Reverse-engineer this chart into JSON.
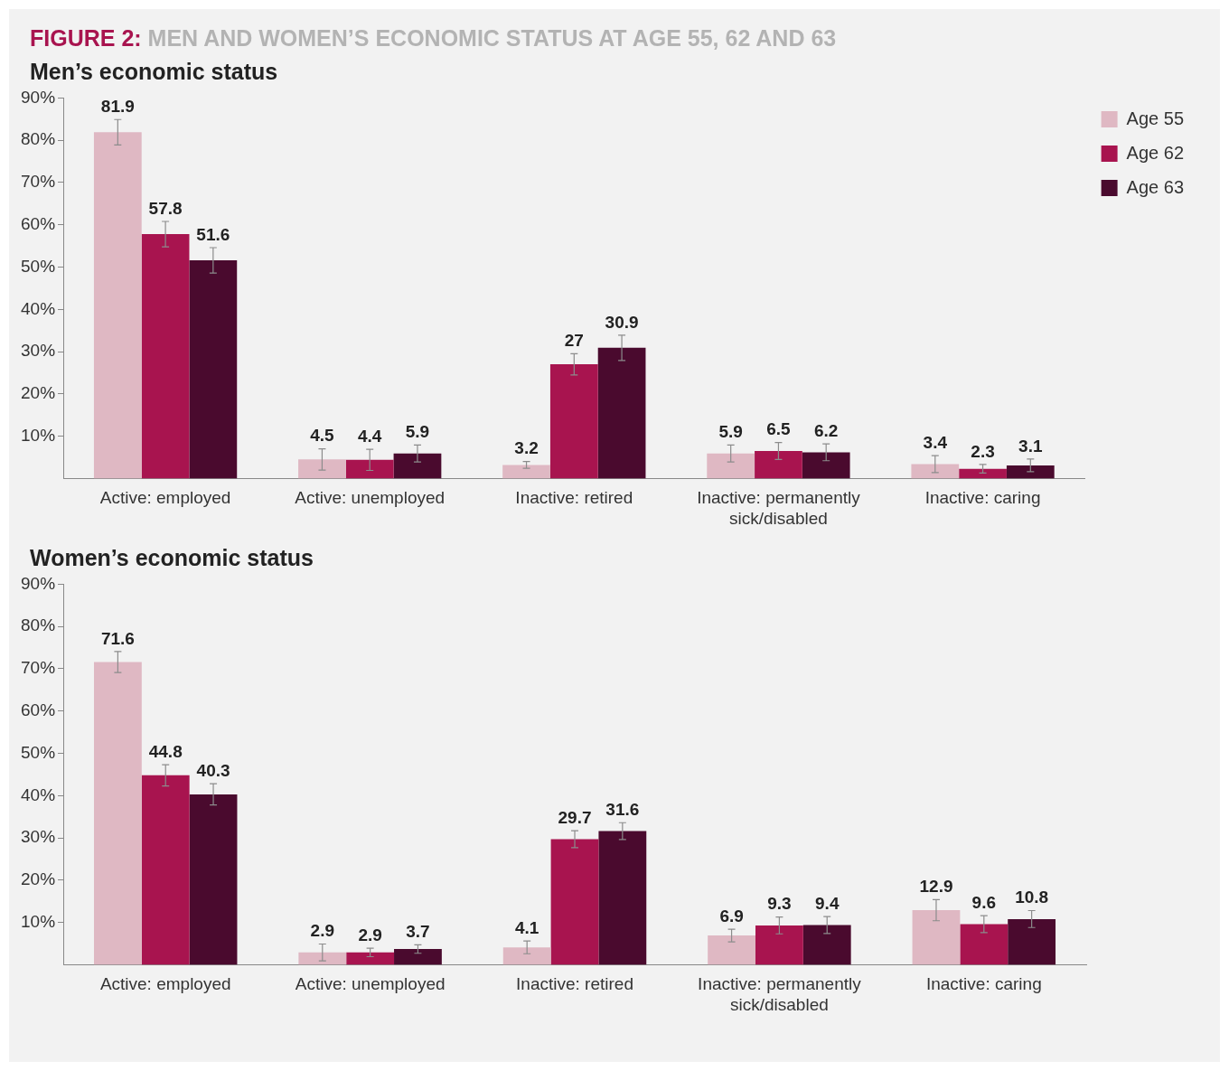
{
  "chart_data": [
    {
      "type": "bar",
      "title": "FIGURE 2: MEN AND WOMEN’S ECONOMIC STATUS AT AGE 55, 62 AND 63",
      "subtitle": "Men’s economic status",
      "categories": [
        "Active: employed",
        "Active: unemployed",
        "Inactive: retired",
        "Inactive: permanently sick/disabled",
        "Inactive: caring"
      ],
      "series": [
        {
          "name": "Age 55",
          "color": "#dfb8c3",
          "values": [
            81.9,
            4.5,
            3.2,
            5.9,
            3.4
          ],
          "errors": [
            3,
            2.5,
            0.8,
            2,
            2
          ]
        },
        {
          "name": "Age 62",
          "color": "#a8144f",
          "values": [
            57.8,
            4.4,
            27,
            6.5,
            2.3
          ],
          "errors": [
            3,
            2.5,
            2.5,
            2,
            1
          ]
        },
        {
          "name": "Age 63",
          "color": "#4a0a2e",
          "values": [
            51.6,
            5.9,
            30.9,
            6.2,
            3.1
          ],
          "errors": [
            3,
            2,
            3,
            2,
            1.5
          ]
        }
      ],
      "ylim": [
        0,
        90
      ],
      "yticks": [
        {
          "value": 10,
          "label": "10%"
        },
        {
          "value": 20,
          "label": "20%"
        },
        {
          "value": 30,
          "label": "30%"
        },
        {
          "value": 40,
          "label": "40%"
        },
        {
          "value": 50,
          "label": "50%"
        },
        {
          "value": 60,
          "label": "60%"
        },
        {
          "value": 70,
          "label": "70%"
        },
        {
          "value": 80,
          "label": "80%"
        },
        {
          "value": 90,
          "label": "90%"
        }
      ],
      "data_labels": true,
      "legend": "top right"
    },
    {
      "type": "bar",
      "title": "Women’s economic status",
      "categories": [
        "Active: employed",
        "Active: unemployed",
        "Inactive: retired",
        "Inactive: permanently sick/disabled",
        "Inactive: caring"
      ],
      "series": [
        {
          "color": "#dfb8c3",
          "values": [
            71.6,
            2.9,
            4.1,
            6.9,
            12.9
          ],
          "errors": [
            2.5,
            2,
            1.5,
            1.5,
            2.5
          ]
        },
        {
          "color": "#a8144f",
          "values": [
            44.8,
            2.9,
            29.7,
            9.3,
            9.6
          ],
          "errors": [
            2.5,
            1,
            2,
            2,
            2
          ]
        },
        {
          "color": "#4a0a2e",
          "values": [
            40.3,
            3.7,
            31.6,
            9.4,
            10.8
          ],
          "errors": [
            2.5,
            1,
            2,
            2,
            2
          ]
        }
      ],
      "ylim": [
        0,
        90
      ],
      "yticks": [
        {
          "value": 10,
          "label": "10%"
        },
        {
          "value": 20,
          "label": "20%"
        },
        {
          "value": 30,
          "label": "30%"
        },
        {
          "value": 40,
          "label": "40%"
        },
        {
          "value": 50,
          "label": "50%"
        },
        {
          "value": 60,
          "label": "60%"
        },
        {
          "value": 70,
          "label": "70%"
        },
        {
          "value": 80,
          "label": "80%"
        },
        {
          "value": 90,
          "label": "90%"
        }
      ],
      "data_labels": true
    }
  ]
}
